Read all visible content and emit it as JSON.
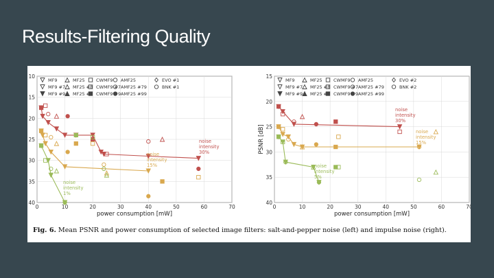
{
  "slide": {
    "title": "Results-Filtering Quality"
  },
  "caption": {
    "label": "Fig. 6.",
    "text": "Mean PSNR and power consumption of selected image filters: salt-and-pepper noise (left) and impulse noise (right)."
  },
  "legend_items": [
    {
      "label": "MF9",
      "symbol": "tri-down-open"
    },
    {
      "label": "MF9 #7",
      "symbol": "tri-down-open"
    },
    {
      "label": "MF9 #9",
      "symbol": "tri-down-filled"
    },
    {
      "label": "MF25",
      "symbol": "tri-up-open"
    },
    {
      "label": "MF25 #8",
      "symbol": "tri-up-open"
    },
    {
      "label": "MF25 #9",
      "symbol": "tri-up-filled"
    },
    {
      "label": "CWMF9",
      "symbol": "square-open"
    },
    {
      "label": "CWMF9 #7",
      "symbol": "square-open"
    },
    {
      "label": "CWMF9 #9",
      "symbol": "square-filled"
    },
    {
      "label": "AMF25",
      "symbol": "circle-open"
    },
    {
      "label": "AMF25 #79",
      "symbol": "circle-open"
    },
    {
      "label": "AMF25 #99",
      "symbol": "circle-filled"
    }
  ],
  "chart_data": [
    {
      "type": "scatter",
      "panel": "left",
      "xlabel": "power consumption [mW]",
      "ylabel": "PSNR [dB]",
      "xlim": [
        0,
        70
      ],
      "ylim": [
        40,
        10
      ],
      "xticks": [
        0,
        10,
        20,
        30,
        40,
        50,
        60,
        70
      ],
      "yticks": [
        10,
        15,
        20,
        25,
        30,
        35,
        40
      ],
      "extra_legend": [
        {
          "label": "EVO #1",
          "symbol": "diamond-open"
        },
        {
          "label": "BNK #1",
          "symbol": "circle-open"
        }
      ],
      "series": [
        {
          "name": "noise intensity 30%",
          "color": "#c0504d",
          "line": [
            [
              1.5,
              17.5
            ],
            [
              2,
              19.5
            ],
            [
              4,
              21
            ],
            [
              7,
              22.5
            ],
            [
              10,
              24
            ],
            [
              14,
              24
            ],
            [
              20,
              24
            ],
            [
              23,
              28
            ],
            [
              24,
              28.5
            ],
            [
              40,
              29
            ],
            [
              58,
              29.5
            ]
          ],
          "points": [
            [
              1.5,
              17.5
            ],
            [
              3,
              17
            ],
            [
              4,
              19
            ],
            [
              7,
              19.5
            ],
            [
              11,
              19.5
            ],
            [
              20,
              25
            ],
            [
              25,
              28.5
            ],
            [
              40,
              25.5
            ],
            [
              45,
              25
            ],
            [
              58,
              32
            ]
          ]
        },
        {
          "name": "noise intensity 15%",
          "color": "#d9a84e",
          "line": [
            [
              1.5,
              23
            ],
            [
              2,
              24
            ],
            [
              3,
              26
            ],
            [
              5,
              28
            ],
            [
              10,
              31.5
            ],
            [
              40,
              32.5
            ]
          ],
          "points": [
            [
              1.5,
              23
            ],
            [
              3,
              24
            ],
            [
              5,
              24.5
            ],
            [
              7,
              26
            ],
            [
              11,
              28
            ],
            [
              14,
              26
            ],
            [
              20,
              26
            ],
            [
              24,
              31
            ],
            [
              25,
              33
            ],
            [
              40,
              38.5
            ],
            [
              45,
              35
            ],
            [
              58,
              34
            ]
          ]
        },
        {
          "name": "noise intensity 1%",
          "color": "#9bbb59",
          "line": [
            [
              1.5,
              26.5
            ],
            [
              4,
              30
            ],
            [
              5,
              33.5
            ],
            [
              10,
              40
            ]
          ],
          "points": [
            [
              1.5,
              26.5
            ],
            [
              3,
              30
            ],
            [
              5,
              32
            ],
            [
              7,
              32.5
            ],
            [
              10,
              40
            ],
            [
              14,
              24
            ],
            [
              20,
              24.5
            ],
            [
              24,
              32
            ],
            [
              25,
              33.5
            ]
          ]
        }
      ],
      "annotations": [
        {
          "text": "noise",
          "line2": "intensity",
          "line3": "30%",
          "anchor_series": "noise intensity 30%"
        },
        {
          "text": "noise",
          "line2": "intensity",
          "line3": "15%",
          "anchor_series": "noise intensity 15%"
        },
        {
          "text": "noise",
          "line2": "intensity",
          "line3": "1%",
          "anchor_series": "noise intensity 1%"
        }
      ]
    },
    {
      "type": "scatter",
      "panel": "right",
      "xlabel": "power consumption [mW]",
      "ylabel": "PSNR [dB]",
      "xlim": [
        0,
        70
      ],
      "ylim": [
        40,
        15
      ],
      "xticks": [
        0,
        10,
        20,
        30,
        40,
        50,
        60,
        70
      ],
      "yticks": [
        15,
        20,
        25,
        30,
        35,
        40
      ],
      "extra_legend": [
        {
          "label": "EVO #2",
          "symbol": "diamond-open"
        },
        {
          "label": "BNK #2",
          "symbol": "circle-open"
        }
      ],
      "series": [
        {
          "name": "noise intensity 30%",
          "color": "#c0504d",
          "line": [
            [
              1.5,
              21
            ],
            [
              3,
              22
            ],
            [
              7,
              24.5
            ],
            [
              45,
              25
            ]
          ],
          "points": [
            [
              1.5,
              21
            ],
            [
              3,
              22.5
            ],
            [
              7,
              24
            ],
            [
              10,
              23
            ],
            [
              15,
              24.5
            ],
            [
              22,
              24
            ],
            [
              45,
              26
            ]
          ]
        },
        {
          "name": "noise intensity 15%",
          "color": "#d9a84e",
          "line": [
            [
              1.5,
              25
            ],
            [
              3,
              26.5
            ],
            [
              5,
              27
            ],
            [
              7,
              28.5
            ],
            [
              10,
              29
            ],
            [
              52,
              29
            ]
          ],
          "points": [
            [
              1.5,
              25
            ],
            [
              3,
              25.5
            ],
            [
              5,
              27.5
            ],
            [
              10,
              29
            ],
            [
              15,
              28.5
            ],
            [
              22,
              29
            ],
            [
              23,
              27
            ],
            [
              52,
              29
            ],
            [
              58,
              26
            ]
          ]
        },
        {
          "name": "noise intensity 5%",
          "color": "#9bbb59",
          "line": [
            [
              1.5,
              27
            ],
            [
              3,
              28
            ],
            [
              4,
              32
            ],
            [
              14,
              33
            ],
            [
              16,
              36
            ]
          ],
          "points": [
            [
              1.5,
              27
            ],
            [
              3,
              28
            ],
            [
              4,
              32
            ],
            [
              14,
              33
            ],
            [
              16,
              36
            ],
            [
              22,
              33
            ],
            [
              23,
              33
            ],
            [
              52,
              35.5
            ],
            [
              58,
              34
            ]
          ]
        }
      ],
      "annotations": [
        {
          "text": "noise",
          "line2": "intensity",
          "line3": "30%",
          "anchor_series": "noise intensity 30%"
        },
        {
          "text": "noise",
          "line2": "intensity",
          "line3": "15%",
          "anchor_series": "noise intensity 15%"
        },
        {
          "text": "noise",
          "line2": "intensity",
          "line3": "5%",
          "anchor_series": "noise intensity 5%"
        }
      ]
    }
  ]
}
